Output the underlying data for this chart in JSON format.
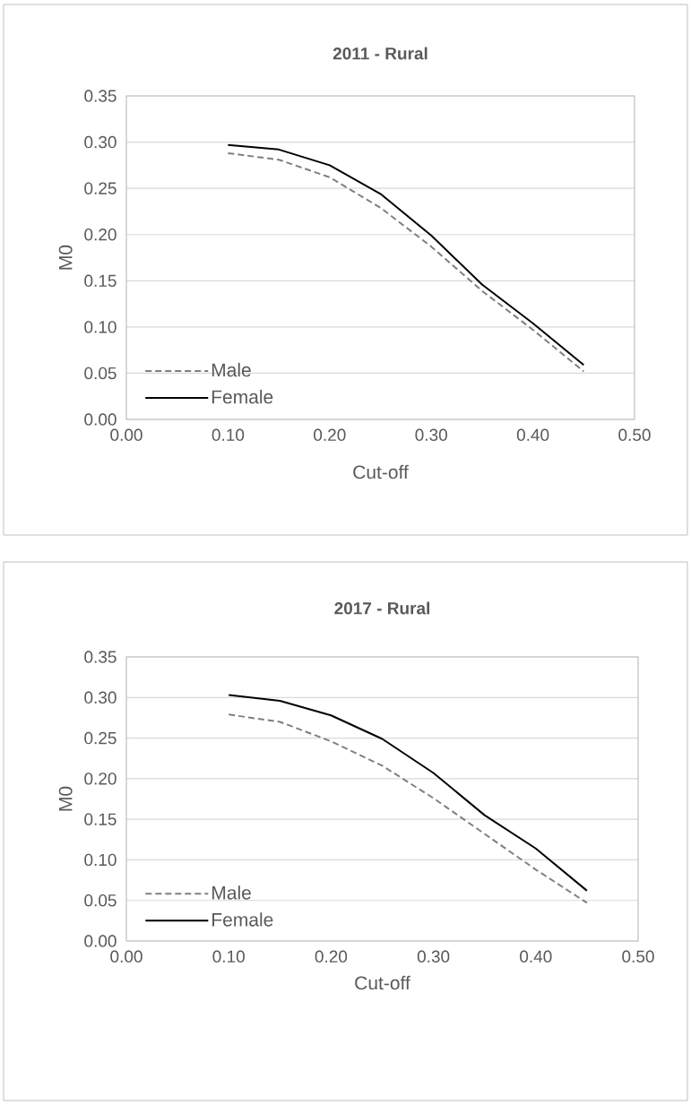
{
  "chart_data": [
    {
      "type": "line",
      "title": "2011 - Rural",
      "xlabel": "Cut-off",
      "ylabel": "M0",
      "x": [
        0.1,
        0.15,
        0.2,
        0.25,
        0.3,
        0.35,
        0.4,
        0.45
      ],
      "series": [
        {
          "name": "Male",
          "color": "#7f7f7f",
          "line_style": "dashed",
          "values": [
            0.288,
            0.281,
            0.262,
            0.229,
            0.187,
            0.139,
            0.097,
            0.052
          ]
        },
        {
          "name": "Female",
          "color": "#000000",
          "line_style": "solid",
          "values": [
            0.297,
            0.292,
            0.275,
            0.244,
            0.199,
            0.146,
            0.104,
            0.059
          ]
        }
      ],
      "xlim": [
        0,
        0.5
      ],
      "ylim": [
        0,
        0.35
      ],
      "xticks": [
        {
          "value": 0,
          "label": "0.00"
        },
        {
          "value": 0.1,
          "label": "0.10"
        },
        {
          "value": 0.2,
          "label": "0.20"
        },
        {
          "value": 0.3,
          "label": "0.30"
        },
        {
          "value": 0.4,
          "label": "0.40"
        },
        {
          "value": 0.5,
          "label": "0.50"
        }
      ],
      "yticks": [
        {
          "value": 0,
          "label": "0.00"
        },
        {
          "value": 0.05,
          "label": "0.05"
        },
        {
          "value": 0.1,
          "label": "0.10"
        },
        {
          "value": 0.15,
          "label": "0.15"
        },
        {
          "value": 0.2,
          "label": "0.20"
        },
        {
          "value": 0.25,
          "label": "0.25"
        },
        {
          "value": 0.3,
          "label": "0.30"
        },
        {
          "value": 0.35,
          "label": "0.35"
        }
      ],
      "grid": "y",
      "legend": "bottom left"
    },
    {
      "type": "line",
      "title": "2017 - Rural",
      "xlabel": "Cut-off",
      "ylabel": "M0",
      "x": [
        0.1,
        0.15,
        0.2,
        0.25,
        0.3,
        0.35,
        0.4,
        0.45
      ],
      "series": [
        {
          "name": "Male",
          "color": "#7f7f7f",
          "line_style": "dashed",
          "values": [
            0.279,
            0.27,
            0.246,
            0.216,
            0.176,
            0.132,
            0.088,
            0.047
          ]
        },
        {
          "name": "Female",
          "color": "#000000",
          "line_style": "solid",
          "values": [
            0.303,
            0.296,
            0.278,
            0.249,
            0.207,
            0.155,
            0.114,
            0.062
          ]
        }
      ],
      "xlim": [
        0,
        0.5
      ],
      "ylim": [
        0,
        0.35
      ],
      "xticks": [
        {
          "value": 0,
          "label": "0.00"
        },
        {
          "value": 0.1,
          "label": "0.10"
        },
        {
          "value": 0.2,
          "label": "0.20"
        },
        {
          "value": 0.3,
          "label": "0.30"
        },
        {
          "value": 0.4,
          "label": "0.40"
        },
        {
          "value": 0.5,
          "label": "0.50"
        }
      ],
      "yticks": [
        {
          "value": 0,
          "label": "0.00"
        },
        {
          "value": 0.05,
          "label": "0.05"
        },
        {
          "value": 0.1,
          "label": "0.10"
        },
        {
          "value": 0.15,
          "label": "0.15"
        },
        {
          "value": 0.2,
          "label": "0.20"
        },
        {
          "value": 0.25,
          "label": "0.25"
        },
        {
          "value": 0.3,
          "label": "0.30"
        },
        {
          "value": 0.35,
          "label": "0.35"
        }
      ],
      "grid": "y",
      "legend": "bottom left"
    }
  ]
}
